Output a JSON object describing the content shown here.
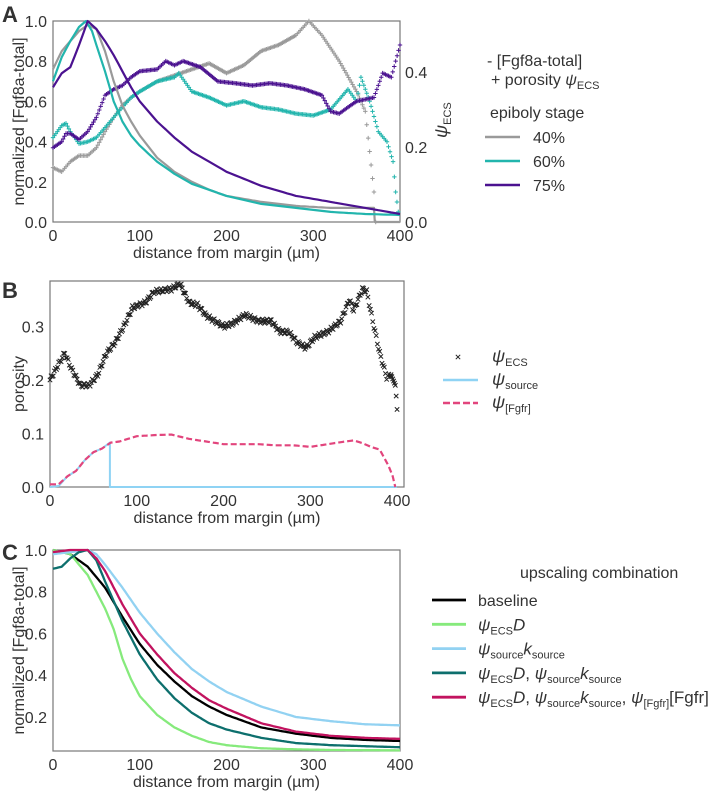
{
  "chart_data": [
    {
      "panel": "A",
      "type": "line",
      "xlabel": "distance from margin (µm)",
      "ylabel": "normalized [Fgf8a-total]",
      "ylabel_right": [
        [
          "ψ",
          "i"
        ],
        [
          "ECS",
          "sub"
        ]
      ],
      "xlim": [
        0,
        400
      ],
      "ylim": [
        0,
        1.0
      ],
      "ylim_right": [
        0,
        0.536
      ],
      "xticks": [
        0,
        100,
        200,
        300,
        400
      ],
      "yticks": [
        0.0,
        0.2,
        0.4,
        0.6,
        0.8,
        1.0
      ],
      "yticks_right": [
        0.0,
        0.2,
        0.4
      ],
      "grid": false,
      "legend_position": "right",
      "legend_header": [
        [
          [
            "- [Fgf8a-total]",
            "n"
          ]
        ],
        [
          [
            "+ porosity ",
            "n"
          ],
          [
            "ψ",
            "i"
          ],
          [
            "ECS",
            "sub"
          ]
        ]
      ],
      "legend_title": "epiboly stage",
      "series": [
        {
          "name": "40%",
          "color": "#9a9a9a",
          "fgf8a": {
            "x": [
              0,
              10,
              20,
              30,
              40,
              50,
              60,
              70,
              80,
              90,
              100,
              120,
              140,
              160,
              180,
              200,
              240,
              280,
              320,
              370,
              371,
              400
            ],
            "y": [
              0.76,
              0.85,
              0.9,
              0.95,
              0.98,
              0.96,
              0.85,
              0.7,
              0.58,
              0.5,
              0.43,
              0.32,
              0.25,
              0.2,
              0.16,
              0.13,
              0.1,
              0.08,
              0.07,
              0.07,
              0.0,
              0.0
            ]
          },
          "porosity": {
            "x": [
              0,
              10,
              20,
              30,
              40,
              50,
              60,
              70,
              80,
              90,
              100,
              120,
              140,
              160,
              180,
              200,
              220,
              240,
              260,
              280,
              295,
              310,
              330,
              350,
              360,
              365,
              370,
              372
            ],
            "y": [
              0.145,
              0.134,
              0.161,
              0.177,
              0.177,
              0.198,
              0.241,
              0.279,
              0.311,
              0.332,
              0.348,
              0.375,
              0.391,
              0.407,
              0.423,
              0.397,
              0.418,
              0.456,
              0.472,
              0.498,
              0.536,
              0.498,
              0.429,
              0.348,
              0.295,
              0.188,
              0.08,
              0.0
            ]
          }
        },
        {
          "name": "60%",
          "color": "#22b5ad",
          "fgf8a": {
            "x": [
              0,
              10,
              20,
              30,
              38,
              45,
              50,
              60,
              70,
              80,
              90,
              100,
              120,
              140,
              160,
              180,
              200,
              240,
              280,
              320,
              360,
              400
            ],
            "y": [
              0.7,
              0.82,
              0.9,
              0.97,
              1.0,
              0.95,
              0.88,
              0.75,
              0.6,
              0.5,
              0.43,
              0.38,
              0.3,
              0.24,
              0.19,
              0.16,
              0.13,
              0.09,
              0.07,
              0.05,
              0.04,
              0.035
            ]
          },
          "porosity": {
            "x": [
              0,
              10,
              15,
              20,
              30,
              40,
              50,
              60,
              70,
              80,
              90,
              100,
              120,
              140,
              145,
              160,
              180,
              200,
              220,
              240,
              260,
              280,
              300,
              320,
              340,
              350,
              355,
              365,
              375,
              385,
              392,
              395,
              398
            ],
            "y": [
              0.225,
              0.257,
              0.263,
              0.241,
              0.209,
              0.214,
              0.225,
              0.252,
              0.279,
              0.306,
              0.332,
              0.348,
              0.375,
              0.386,
              0.397,
              0.348,
              0.332,
              0.311,
              0.322,
              0.306,
              0.3,
              0.289,
              0.284,
              0.3,
              0.354,
              0.322,
              0.386,
              0.322,
              0.241,
              0.214,
              0.161,
              0.08,
              0.027
            ]
          }
        },
        {
          "name": "75%",
          "color": "#4b1290",
          "fgf8a": {
            "x": [
              0,
              10,
              20,
              30,
              40,
              50,
              60,
              70,
              80,
              90,
              100,
              120,
              140,
              160,
              180,
              200,
              240,
              280,
              320,
              360,
              400
            ],
            "y": [
              0.67,
              0.74,
              0.77,
              0.88,
              1.0,
              0.96,
              0.9,
              0.83,
              0.75,
              0.67,
              0.6,
              0.5,
              0.42,
              0.35,
              0.3,
              0.25,
              0.18,
              0.13,
              0.1,
              0.07,
              0.04
            ]
          },
          "porosity": {
            "x": [
              0,
              10,
              15,
              20,
              30,
              40,
              50,
              60,
              70,
              80,
              90,
              100,
              120,
              130,
              140,
              150,
              170,
              190,
              210,
              230,
              250,
              270,
              290,
              310,
              320,
              330,
              340,
              350,
              360,
              370,
              380,
              390,
              400
            ],
            "y": [
              0.198,
              0.214,
              0.236,
              0.236,
              0.22,
              0.241,
              0.279,
              0.338,
              0.354,
              0.364,
              0.386,
              0.402,
              0.407,
              0.429,
              0.418,
              0.429,
              0.413,
              0.375,
              0.37,
              0.364,
              0.37,
              0.364,
              0.354,
              0.338,
              0.295,
              0.289,
              0.306,
              0.322,
              0.327,
              0.332,
              0.397,
              0.386,
              0.472
            ]
          }
        }
      ]
    },
    {
      "panel": "B",
      "type": "line",
      "xlabel": "distance from margin (µm)",
      "ylabel": "porosity",
      "xlim": [
        0,
        408
      ],
      "ylim": [
        0,
        0.385
      ],
      "xticks": [
        0,
        100,
        200,
        300,
        400
      ],
      "yticks": [
        0.0,
        0.1,
        0.2,
        0.3
      ],
      "grid": false,
      "legend_position": "right",
      "series": [
        {
          "name": [
            [
              "ψ",
              "i"
            ],
            [
              "ECS",
              "sub"
            ]
          ],
          "color": "#222222",
          "style": "x-markers",
          "x": [
            0,
            10,
            17,
            25,
            35,
            45,
            55,
            65,
            75,
            85,
            95,
            110,
            120,
            140,
            150,
            160,
            170,
            180,
            200,
            210,
            225,
            240,
            255,
            265,
            275,
            285,
            295,
            305,
            320,
            335,
            345,
            350,
            360,
            365,
            372,
            380,
            388,
            393,
            398,
            399,
            400
          ],
          "y": [
            0.2,
            0.23,
            0.25,
            0.22,
            0.19,
            0.19,
            0.21,
            0.25,
            0.27,
            0.3,
            0.335,
            0.345,
            0.365,
            0.37,
            0.38,
            0.345,
            0.34,
            0.32,
            0.3,
            0.305,
            0.322,
            0.31,
            0.31,
            0.29,
            0.29,
            0.27,
            0.26,
            0.28,
            0.29,
            0.31,
            0.35,
            0.33,
            0.37,
            0.365,
            0.31,
            0.25,
            0.205,
            0.21,
            0.19,
            0.17,
            0.145
          ]
        },
        {
          "name": [
            [
              "ψ",
              "i"
            ],
            [
              "source",
              "sub"
            ]
          ],
          "color": "#8fd3f4",
          "style": "solid",
          "x": [
            0,
            10,
            20,
            30,
            40,
            50,
            60,
            69,
            69.01,
            400
          ],
          "y": [
            0,
            0.002,
            0.02,
            0.03,
            0.05,
            0.065,
            0.072,
            0.083,
            0,
            0
          ]
        },
        {
          "name": [
            [
              "ψ",
              "i"
            ],
            [
              "[Fgfr]",
              "sub"
            ]
          ],
          "color": "#e2457d",
          "style": "dashed",
          "x": [
            0,
            10,
            20,
            30,
            40,
            50,
            60,
            70,
            80,
            90,
            100,
            120,
            140,
            160,
            180,
            200,
            220,
            240,
            260,
            280,
            300,
            320,
            340,
            350,
            360,
            370,
            380,
            390,
            395,
            398
          ],
          "y": [
            0.005,
            0.005,
            0.02,
            0.03,
            0.05,
            0.065,
            0.072,
            0.083,
            0.085,
            0.09,
            0.095,
            0.097,
            0.098,
            0.09,
            0.085,
            0.08,
            0.08,
            0.08,
            0.078,
            0.078,
            0.075,
            0.08,
            0.085,
            0.087,
            0.082,
            0.075,
            0.07,
            0.04,
            0.02,
            0.0
          ]
        }
      ]
    },
    {
      "panel": "C",
      "type": "line",
      "xlabel": "distance from margin (µm)",
      "ylabel": "normalized [Fgf8a-total]",
      "xlim": [
        0,
        400
      ],
      "ylim": [
        0.037,
        1.0
      ],
      "xticks": [
        0,
        100,
        200,
        300,
        400
      ],
      "yticks": [
        0.2,
        0.4,
        0.6,
        0.8,
        1.0
      ],
      "grid": false,
      "legend_position": "right",
      "legend_title": "upscaling combination",
      "series": [
        {
          "name": [
            [
              "baseline",
              "n"
            ]
          ],
          "color": "#000000",
          "x": [
            0,
            20,
            40,
            60,
            80,
            100,
            120,
            140,
            160,
            180,
            200,
            240,
            280,
            320,
            360,
            400
          ],
          "y": [
            1.0,
            0.98,
            0.92,
            0.82,
            0.68,
            0.55,
            0.45,
            0.37,
            0.3,
            0.25,
            0.21,
            0.15,
            0.12,
            0.1,
            0.09,
            0.085
          ]
        },
        {
          "name": [
            [
              "ψ",
              "i"
            ],
            [
              "ECS",
              "sub"
            ],
            [
              "D",
              "i"
            ]
          ],
          "color": "#86ea7c",
          "x": [
            0,
            20,
            40,
            60,
            70,
            80,
            90,
            100,
            120,
            140,
            160,
            180,
            200,
            240,
            280,
            320,
            400
          ],
          "y": [
            1.0,
            0.98,
            0.88,
            0.72,
            0.62,
            0.48,
            0.38,
            0.3,
            0.21,
            0.15,
            0.11,
            0.08,
            0.065,
            0.05,
            0.045,
            0.042,
            0.04
          ]
        },
        {
          "name": [
            [
              "ψ",
              "i"
            ],
            [
              "source",
              "sub"
            ],
            [
              "k",
              "i"
            ],
            [
              "source",
              "sub"
            ]
          ],
          "color": "#92d2f2",
          "x": [
            0,
            20,
            40,
            50,
            60,
            80,
            100,
            120,
            140,
            160,
            180,
            200,
            240,
            280,
            320,
            360,
            400
          ],
          "y": [
            0.98,
            0.99,
            1.0,
            0.98,
            0.93,
            0.82,
            0.7,
            0.6,
            0.51,
            0.43,
            0.37,
            0.32,
            0.25,
            0.2,
            0.18,
            0.165,
            0.16
          ]
        },
        {
          "name": [
            [
              "ψ",
              "i"
            ],
            [
              "ECS",
              "sub"
            ],
            [
              "D",
              "i"
            ],
            [
              ", ",
              "n"
            ],
            [
              "ψ",
              "i"
            ],
            [
              "source",
              "sub"
            ],
            [
              "k",
              "i"
            ],
            [
              "source",
              "sub"
            ]
          ],
          "color": "#0d6f6d",
          "x": [
            0,
            10,
            20,
            30,
            40,
            50,
            60,
            80,
            100,
            120,
            140,
            160,
            180,
            200,
            240,
            280,
            320,
            360,
            400
          ],
          "y": [
            0.91,
            0.92,
            0.96,
            0.99,
            1.0,
            0.95,
            0.85,
            0.66,
            0.5,
            0.38,
            0.29,
            0.22,
            0.17,
            0.14,
            0.1,
            0.075,
            0.065,
            0.06,
            0.055
          ]
        },
        {
          "name": [
            [
              "ψ",
              "i"
            ],
            [
              "ECS",
              "sub"
            ],
            [
              "D",
              "i"
            ],
            [
              ", ",
              "n"
            ],
            [
              "ψ",
              "i"
            ],
            [
              "source",
              "sub"
            ],
            [
              "k",
              "i"
            ],
            [
              "source",
              "sub"
            ],
            [
              ", ",
              "n"
            ],
            [
              "ψ",
              "i"
            ],
            [
              "[Fgfr]",
              "sub"
            ],
            [
              "[Fgfr]",
              "n"
            ]
          ],
          "color": "#c2135f",
          "x": [
            0,
            20,
            40,
            50,
            60,
            80,
            100,
            120,
            140,
            160,
            180,
            200,
            240,
            280,
            320,
            360,
            400
          ],
          "y": [
            0.99,
            1.0,
            1.0,
            0.96,
            0.9,
            0.74,
            0.6,
            0.5,
            0.41,
            0.34,
            0.28,
            0.24,
            0.17,
            0.13,
            0.11,
            0.1,
            0.095
          ]
        }
      ]
    }
  ],
  "panel_labels": [
    "A",
    "B",
    "C"
  ]
}
